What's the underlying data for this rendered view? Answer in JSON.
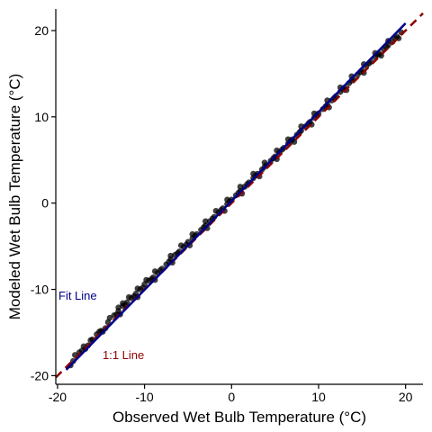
{
  "chart_data": {
    "type": "scatter",
    "title": "",
    "xlabel": "Observed Wet Bulb Temperature (°C)",
    "ylabel": "Modeled Wet Bulb Temperature (°C)",
    "xlim": [
      -20.2,
      22
    ],
    "ylim": [
      -21,
      22.5
    ],
    "x_ticks": [
      -20,
      -10,
      0,
      10,
      20
    ],
    "y_ticks": [
      -20,
      -10,
      0,
      10,
      20
    ],
    "x_tick_labels": [
      "-20",
      "-10",
      "0",
      "10",
      "20"
    ],
    "y_tick_labels": [
      "-20",
      "-10",
      "0",
      "10",
      "20"
    ],
    "grid": false,
    "point_color": "#000000",
    "fit_line": {
      "label": "Fit Line",
      "color": "#00008B",
      "x_range": [
        -19,
        20
      ],
      "slope": 1.03,
      "intercept": 0.25
    },
    "identity_line": {
      "label": "1:1 Line",
      "color": "#8B0000",
      "x_range": [
        -20.2,
        22
      ],
      "slope": 1,
      "intercept": 0
    },
    "series": [
      {
        "values": [
          [
            -18.5,
            -18.8
          ],
          [
            -18.0,
            -17.6
          ],
          [
            -17.5,
            -17.3
          ],
          [
            -17.0,
            -16.6
          ],
          [
            -16.5,
            -16.5
          ],
          [
            -16.0,
            -15.8
          ],
          [
            -15.5,
            -15.2
          ],
          [
            -15.0,
            -14.8
          ],
          [
            -14.5,
            -14.5
          ],
          [
            -14.0,
            -13.3
          ],
          [
            -13.5,
            -13.0
          ],
          [
            -13.0,
            -12.5
          ],
          [
            -12.5,
            -11.9
          ],
          [
            -12.0,
            -11.5
          ],
          [
            -11.5,
            -11.0
          ],
          [
            -11.0,
            -10.5
          ],
          [
            -10.5,
            -10.0
          ],
          [
            -10.0,
            -9.4
          ],
          [
            -9.5,
            -9.0
          ],
          [
            -9.0,
            -8.6
          ],
          [
            -8.5,
            -8.1
          ],
          [
            -8.0,
            -7.6
          ],
          [
            -7.5,
            -7.1
          ],
          [
            -7.0,
            -6.5
          ],
          [
            -6.5,
            -6.0
          ],
          [
            -6.0,
            -5.6
          ],
          [
            -5.5,
            -5.1
          ],
          [
            -5.0,
            -4.5
          ],
          [
            -4.5,
            -4.1
          ],
          [
            -4.0,
            -3.6
          ],
          [
            -3.5,
            -3.1
          ],
          [
            -3.0,
            -2.6
          ],
          [
            -2.5,
            -2.1
          ],
          [
            -2.0,
            -1.6
          ],
          [
            -1.5,
            -1.1
          ],
          [
            -1.0,
            -0.6
          ],
          [
            -0.5,
            -0.1
          ],
          [
            0.0,
            0.4
          ],
          [
            0.5,
            0.9
          ],
          [
            1.0,
            1.4
          ],
          [
            1.5,
            1.9
          ],
          [
            2.0,
            2.4
          ],
          [
            2.5,
            2.9
          ],
          [
            3.0,
            3.4
          ],
          [
            3.5,
            3.9
          ],
          [
            4.0,
            4.4
          ],
          [
            4.5,
            4.9
          ],
          [
            5.0,
            5.4
          ],
          [
            5.5,
            5.9
          ],
          [
            6.0,
            6.4
          ],
          [
            6.5,
            6.9
          ],
          [
            7.0,
            7.4
          ],
          [
            7.5,
            7.9
          ],
          [
            8.0,
            8.4
          ],
          [
            8.5,
            8.9
          ],
          [
            9.0,
            9.4
          ],
          [
            9.5,
            9.9
          ],
          [
            10.0,
            10.4
          ],
          [
            10.5,
            10.9
          ],
          [
            11.0,
            11.4
          ],
          [
            11.5,
            11.9
          ],
          [
            12.0,
            12.4
          ],
          [
            12.5,
            12.9
          ],
          [
            13.0,
            13.4
          ],
          [
            13.5,
            13.9
          ],
          [
            14.0,
            14.4
          ],
          [
            14.5,
            14.9
          ],
          [
            15.0,
            15.4
          ],
          [
            15.5,
            15.9
          ],
          [
            16.0,
            16.4
          ],
          [
            16.5,
            16.9
          ],
          [
            17.0,
            17.3
          ],
          [
            17.5,
            17.8
          ],
          [
            18.0,
            18.3
          ],
          [
            18.5,
            18.7
          ],
          [
            19.0,
            19.3
          ],
          [
            19.5,
            19.8
          ],
          [
            -18.2,
            -18.3
          ],
          [
            -17.2,
            -17.1
          ],
          [
            -16.2,
            -15.9
          ],
          [
            -15.2,
            -14.9
          ],
          [
            -14.2,
            -13.8
          ],
          [
            -13.2,
            -12.9
          ],
          [
            -12.2,
            -11.8
          ],
          [
            -11.2,
            -10.8
          ],
          [
            -10.2,
            -9.8
          ],
          [
            -9.2,
            -8.8
          ],
          [
            -8.2,
            -7.8
          ],
          [
            -7.2,
            -6.8
          ],
          [
            -6.2,
            -5.8
          ],
          [
            -5.2,
            -4.8
          ],
          [
            -4.2,
            -3.8
          ],
          [
            -3.2,
            -2.8
          ],
          [
            -2.2,
            -1.8
          ],
          [
            -1.2,
            -0.8
          ],
          [
            -0.2,
            0.2
          ],
          [
            0.8,
            1.2
          ],
          [
            1.8,
            2.2
          ],
          [
            2.8,
            3.2
          ],
          [
            3.8,
            4.2
          ],
          [
            4.8,
            5.2
          ],
          [
            5.8,
            6.2
          ],
          [
            6.8,
            7.2
          ],
          [
            7.8,
            8.2
          ],
          [
            8.8,
            9.2
          ],
          [
            9.8,
            10.2
          ],
          [
            10.8,
            11.2
          ],
          [
            11.8,
            12.2
          ],
          [
            12.8,
            13.2
          ],
          [
            13.8,
            14.2
          ],
          [
            14.8,
            15.2
          ],
          [
            15.8,
            16.2
          ],
          [
            16.8,
            17.2
          ],
          [
            17.8,
            18.1
          ],
          [
            18.8,
            19.1
          ],
          [
            -13.0,
            -12.1
          ],
          [
            -12.5,
            -11.6
          ],
          [
            -11.8,
            -10.9
          ],
          [
            -10.8,
            -9.9
          ],
          [
            -9.8,
            -8.9
          ],
          [
            -8.8,
            -7.9
          ],
          [
            -7.0,
            -6.1
          ],
          [
            -5.8,
            -4.9
          ],
          [
            -4.5,
            -3.6
          ],
          [
            -3.0,
            -2.1
          ],
          [
            -1.8,
            -0.9
          ],
          [
            -0.5,
            0.4
          ],
          [
            1.0,
            1.9
          ],
          [
            2.5,
            3.4
          ],
          [
            3.8,
            4.7
          ],
          [
            5.2,
            6.1
          ],
          [
            6.5,
            7.4
          ],
          [
            8.0,
            8.9
          ],
          [
            9.5,
            10.4
          ],
          [
            11.0,
            11.9
          ],
          [
            12.5,
            13.4
          ],
          [
            13.8,
            14.7
          ],
          [
            15.2,
            16.1
          ],
          [
            16.5,
            17.4
          ],
          [
            18.0,
            18.8
          ],
          [
            -16.8,
            -16.9
          ],
          [
            -14.8,
            -14.9
          ],
          [
            -12.8,
            -12.9
          ],
          [
            -10.8,
            -10.9
          ],
          [
            -8.8,
            -8.9
          ],
          [
            -6.8,
            -6.9
          ],
          [
            -4.8,
            -4.9
          ],
          [
            -2.8,
            -2.9
          ],
          [
            -0.8,
            -0.9
          ],
          [
            1.2,
            1.1
          ],
          [
            3.2,
            3.1
          ],
          [
            5.2,
            5.1
          ],
          [
            7.2,
            7.1
          ],
          [
            9.2,
            9.1
          ],
          [
            11.2,
            11.1
          ],
          [
            13.2,
            13.1
          ],
          [
            15.2,
            15.1
          ],
          [
            17.2,
            17.1
          ],
          [
            19.2,
            19.1
          ]
        ]
      }
    ]
  }
}
